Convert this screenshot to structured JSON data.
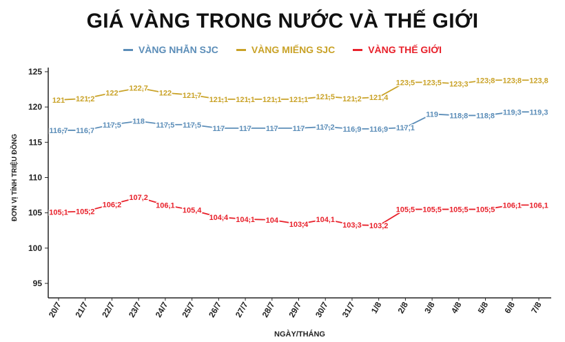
{
  "chart_data": {
    "type": "line",
    "title": "GIÁ VÀNG TRONG NƯỚC VÀ THẾ GIỚI",
    "xlabel": "NGÀY/THÁNG",
    "ylabel": "ĐƠN VỊ TÍNH TRIỆU ĐỒNG",
    "ylim": [
      95,
      125
    ],
    "yticks": [
      "95",
      "100",
      "105",
      "110",
      "115",
      "120",
      "125"
    ],
    "grid": false,
    "legend_position": "top",
    "categories": [
      "20/7",
      "21/7",
      "22/7",
      "23/7",
      "24/7",
      "25/7",
      "26/7",
      "27/7",
      "28/7",
      "29/7",
      "30/7",
      "31/7",
      "1/8",
      "2/8",
      "3/8",
      "4/8",
      "5/8",
      "6/8",
      "7/8"
    ],
    "series": [
      {
        "name": "VÀNG NHẪN SJC",
        "color": "#5b8db8",
        "values": [
          116.7,
          116.7,
          117.5,
          118,
          117.5,
          117.5,
          117,
          117,
          117,
          117,
          117.2,
          116.9,
          116.9,
          117.1,
          119,
          118.8,
          118.8,
          119.3,
          119.3
        ],
        "labels": [
          "116,7",
          "116,7",
          "117,5",
          "118",
          "117,5",
          "117,5",
          "117",
          "117",
          "117",
          "117",
          "117,2",
          "116,9",
          "116,9",
          "117,1",
          "119",
          "118,8",
          "118,8",
          "119,3",
          "119,3"
        ]
      },
      {
        "name": "VÀNG MIẾNG SJC",
        "color": "#c9a227",
        "values": [
          121,
          121.2,
          122,
          122.7,
          122,
          121.7,
          121.1,
          121.1,
          121.1,
          121.1,
          121.5,
          121.2,
          121.4,
          123.5,
          123.5,
          123.3,
          123.8,
          123.8,
          123.8
        ],
        "labels": [
          "121",
          "121,2",
          "122",
          "122,7",
          "122",
          "121,7",
          "121,1",
          "121,1",
          "121,1",
          "121,1",
          "121,5",
          "121,2",
          "121,4",
          "123,5",
          "123,5",
          "123,3",
          "123,8",
          "123,8",
          "123,8"
        ]
      },
      {
        "name": "VÀNG THẾ GIỚI",
        "color": "#e8202a",
        "values": [
          105.1,
          105.2,
          106.2,
          107.2,
          106.1,
          105.4,
          104.4,
          104.1,
          104,
          103.4,
          104.1,
          103.3,
          103.2,
          105.5,
          105.5,
          105.5,
          105.5,
          106.1,
          106.1
        ],
        "labels": [
          "105,1",
          "105,2",
          "106,2",
          "107,2",
          "106,1",
          "105,4",
          "104,4",
          "104,1",
          "104",
          "103,4",
          "104,1",
          "103,3",
          "103,2",
          "105,5",
          "105,5",
          "105,5",
          "105,5",
          "106,1",
          "106,1"
        ]
      }
    ]
  }
}
